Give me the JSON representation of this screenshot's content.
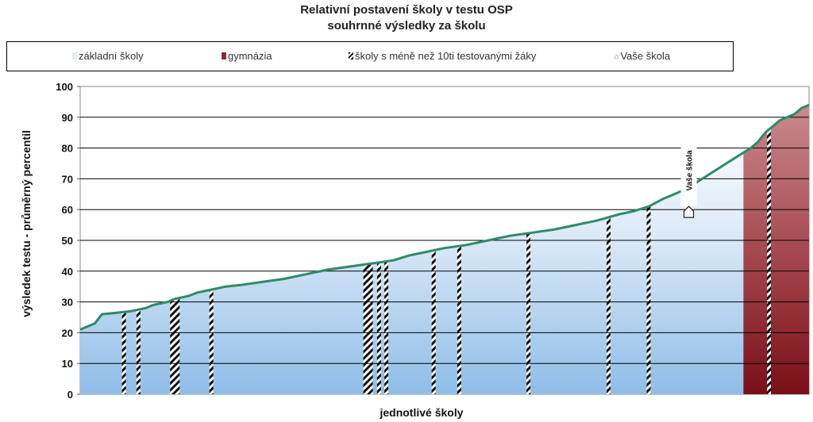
{
  "chart_data": {
    "type": "area",
    "title": "Relativní postavení školy v testu OSP",
    "subtitle": "souhrnné výsledky za školu",
    "xlabel": "jednotlivé školy",
    "ylabel": "výsledek testu - průměrný percentil",
    "ylim": [
      0,
      100
    ],
    "yticks": [
      0,
      10,
      20,
      30,
      40,
      50,
      60,
      70,
      80,
      90,
      100
    ],
    "legend": [
      {
        "key": "zakladni",
        "label": "základní školy"
      },
      {
        "key": "gymnazia",
        "label": "gymnázia"
      },
      {
        "key": "male",
        "label": "školy s méně než 10ti testovanými žáky"
      },
      {
        "key": "vase",
        "label": "Vaše škola"
      }
    ],
    "series_curve": {
      "name": "průměrný percentil",
      "x_range": [
        0,
        100
      ],
      "points": [
        [
          0,
          21
        ],
        [
          2,
          23
        ],
        [
          3,
          26
        ],
        [
          5,
          26.5
        ],
        [
          7,
          27
        ],
        [
          8,
          27.5
        ],
        [
          9,
          28
        ],
        [
          10,
          29
        ],
        [
          12,
          30
        ],
        [
          13,
          31
        ],
        [
          14,
          31.5
        ],
        [
          15,
          32
        ],
        [
          16,
          33
        ],
        [
          18,
          34
        ],
        [
          20,
          35
        ],
        [
          22,
          35.5
        ],
        [
          25,
          36.5
        ],
        [
          28,
          37.5
        ],
        [
          31,
          39
        ],
        [
          34,
          40.5
        ],
        [
          37,
          41.5
        ],
        [
          40,
          42.5
        ],
        [
          43,
          43.5
        ],
        [
          45,
          45
        ],
        [
          47,
          46
        ],
        [
          50,
          47.5
        ],
        [
          53,
          48.5
        ],
        [
          56,
          50
        ],
        [
          59,
          51.5
        ],
        [
          62,
          52.5
        ],
        [
          65,
          53.5
        ],
        [
          68,
          55
        ],
        [
          71,
          56.5
        ],
        [
          74,
          58.5
        ],
        [
          76,
          59.5
        ],
        [
          78,
          61
        ],
        [
          80,
          63.5
        ],
        [
          82,
          65.5
        ],
        [
          84,
          68
        ],
        [
          86,
          71
        ],
        [
          88,
          74
        ],
        [
          90,
          77
        ],
        [
          92,
          80
        ],
        [
          93,
          82
        ],
        [
          94,
          85
        ],
        [
          96,
          89
        ],
        [
          98,
          91
        ],
        [
          99,
          93
        ],
        [
          100,
          94
        ]
      ]
    },
    "small_schools_x": [
      6,
      8,
      13,
      18,
      39.5,
      41,
      42,
      48.5,
      52,
      61.5,
      72.5,
      78,
      94.5
    ],
    "gymnazia_x_range": [
      91,
      100
    ],
    "your_school": {
      "label": "Vaše škola",
      "x": 83.5,
      "value": 59.5
    }
  }
}
